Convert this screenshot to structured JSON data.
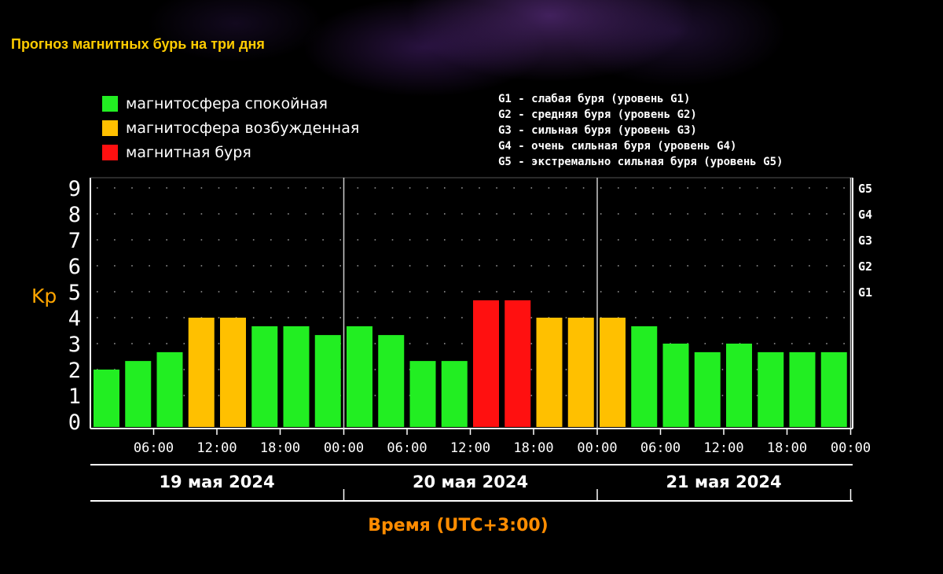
{
  "title": "Прогноз магнитных бурь на три дня",
  "legend": [
    {
      "label": "магнитосфера спокойная",
      "color": "#22ee22"
    },
    {
      "label": "магнитосфера возбужденная",
      "color": "#ffc000"
    },
    {
      "label": "магнитная буря",
      "color": "#ff1010"
    }
  ],
  "storm_levels": [
    "G1 - слабая буря (уровень G1)",
    "G2 - средняя буря (уровень G2)",
    "G3 - сильная буря (уровень G3)",
    "G4 - очень сильная буря (уровень G4)",
    "G5 - экстремально сильная буря (уровень G5)"
  ],
  "chart_data": {
    "type": "bar",
    "ylabel": "Kp",
    "xlabel": "Время (UTC+3:00)",
    "ylim": [
      0,
      9
    ],
    "y_ticks": [
      "0",
      "1",
      "2",
      "3",
      "4",
      "5",
      "6",
      "7",
      "8",
      "9"
    ],
    "g_levels": [
      {
        "label": "G1",
        "kp": 5
      },
      {
        "label": "G2",
        "kp": 6
      },
      {
        "label": "G3",
        "kp": 7
      },
      {
        "label": "G4",
        "kp": 8
      },
      {
        "label": "G5",
        "kp": 9
      }
    ],
    "x_tick_labels": [
      "06:00",
      "12:00",
      "18:00",
      "00:00",
      "06:00",
      "12:00",
      "18:00",
      "00:00",
      "06:00",
      "12:00",
      "18:00",
      "00:00"
    ],
    "days": [
      "19 мая 2024",
      "20 мая 2024",
      "21 мая 2024"
    ],
    "values": [
      2.0,
      2.33,
      2.67,
      4.0,
      4.0,
      3.67,
      3.67,
      3.33,
      3.67,
      3.33,
      2.33,
      2.33,
      4.67,
      4.67,
      4.0,
      4.0,
      4.0,
      3.67,
      3.0,
      2.67,
      3.0,
      2.67,
      2.67,
      2.67
    ],
    "levels": [
      "quiet",
      "quiet",
      "quiet",
      "active",
      "active",
      "quiet",
      "quiet",
      "quiet",
      "quiet",
      "quiet",
      "quiet",
      "quiet",
      "storm",
      "storm",
      "active",
      "active",
      "active",
      "quiet",
      "quiet",
      "quiet",
      "quiet",
      "quiet",
      "quiet",
      "quiet"
    ],
    "level_colors": {
      "quiet": "#22ee22",
      "active": "#ffc000",
      "storm": "#ff1010"
    },
    "grid": true
  }
}
